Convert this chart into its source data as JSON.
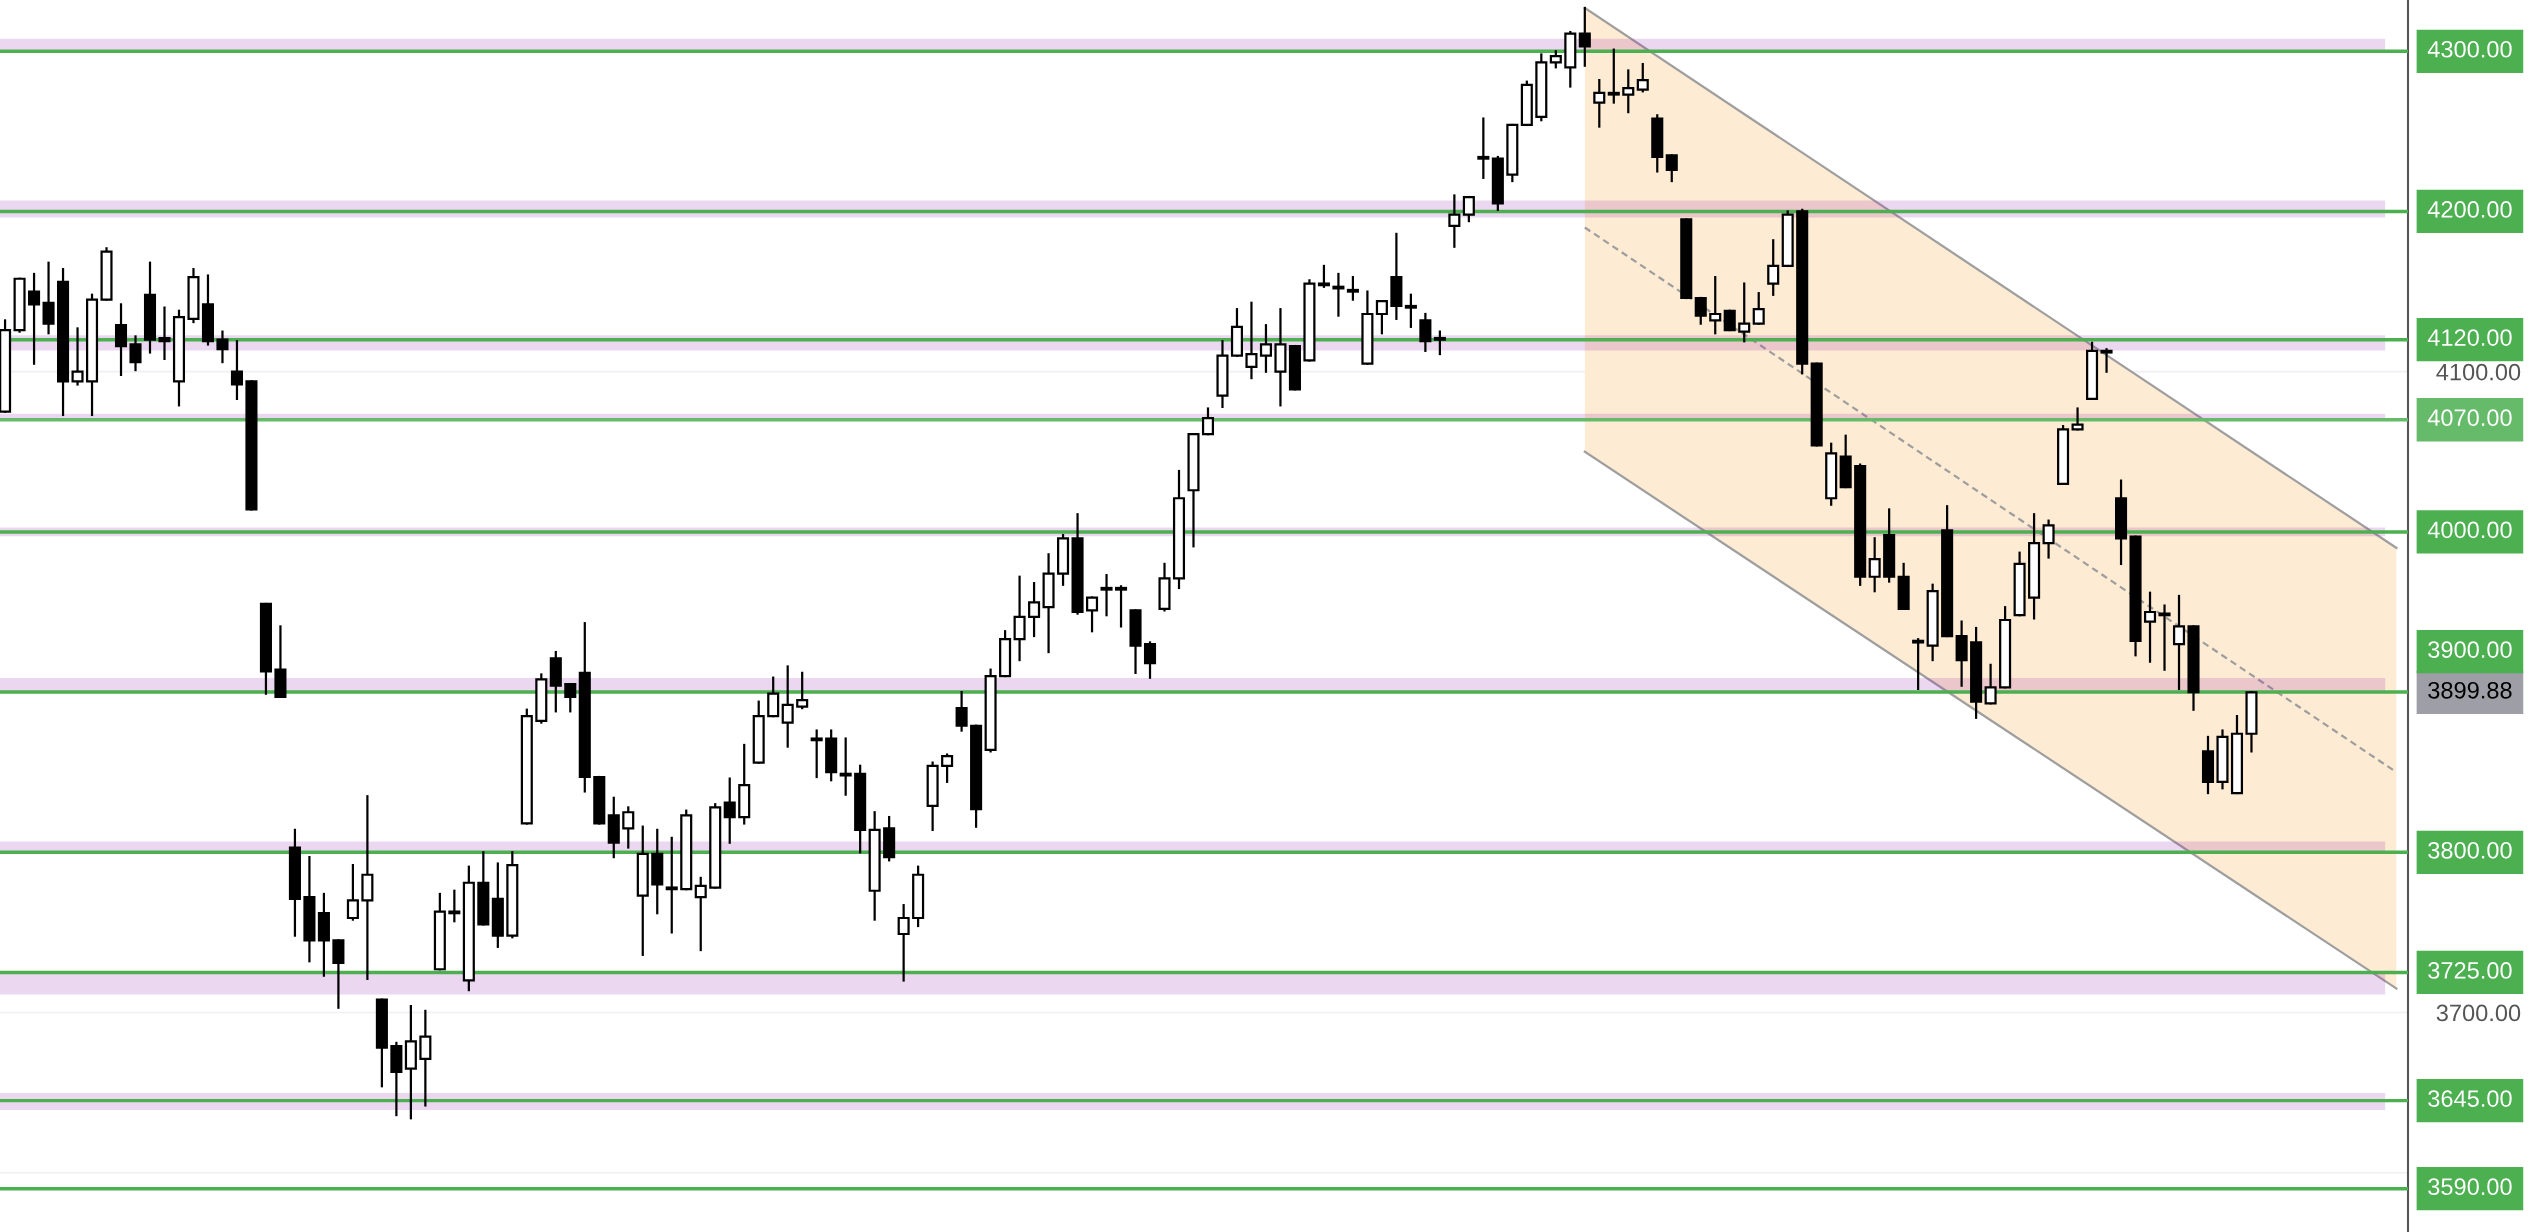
{
  "chart_data": {
    "type": "candlestick",
    "categories": [
      null,
      null,
      null,
      null,
      null,
      null,
      null,
      null,
      null,
      null,
      null,
      null,
      null,
      null,
      null,
      null,
      null,
      null,
      null,
      null,
      null,
      null,
      null,
      null,
      null,
      null,
      null,
      null,
      null,
      null,
      null,
      null,
      null,
      null,
      null,
      null,
      null,
      null,
      null,
      null,
      null,
      null,
      null,
      null,
      null,
      null,
      null,
      null,
      null,
      null,
      null,
      null,
      null,
      null,
      null,
      null,
      null,
      null,
      null,
      null,
      null,
      null,
      null,
      null,
      null,
      null,
      null,
      null,
      null,
      null,
      null,
      null,
      null,
      null,
      null,
      null,
      null,
      null,
      null,
      null,
      null,
      null,
      null,
      null,
      null,
      null,
      null,
      null,
      null,
      null,
      null,
      null,
      null,
      null,
      null,
      null,
      null,
      null,
      null,
      null,
      null,
      null,
      null,
      null,
      null,
      null,
      null,
      null,
      null,
      null,
      null,
      null,
      null,
      null,
      null,
      null,
      null,
      null,
      null,
      null,
      null,
      null,
      null,
      null,
      null,
      null,
      null,
      null,
      null,
      null,
      null,
      null,
      null,
      null,
      null,
      null,
      null,
      null,
      null,
      null,
      null,
      null,
      null,
      null,
      null,
      null,
      null,
      null,
      null,
      null,
      null,
      null,
      null,
      null,
      null,
      null,
      null,
      null,
      null,
      null,
      null,
      null,
      null,
      null,
      null,
      null
    ],
    "ohlc": [
      [
        4075,
        4132,
        4075,
        4126
      ],
      [
        4126,
        4158,
        4125,
        4158
      ],
      [
        4150,
        4161,
        4105,
        4142
      ],
      [
        4143,
        4168,
        4124,
        4130
      ],
      [
        4156,
        4164,
        4073,
        4094
      ],
      [
        4094,
        4127,
        4092,
        4100
      ],
      [
        4094,
        4148,
        4073,
        4145
      ],
      [
        4145,
        4177,
        4145,
        4175
      ],
      [
        4129,
        4142,
        4098,
        4116
      ],
      [
        4117,
        4122,
        4101,
        4106
      ],
      [
        4148,
        4168,
        4112,
        4120
      ],
      [
        4121,
        4140,
        4108,
        4119
      ],
      [
        4094,
        4138,
        4079,
        4134
      ],
      [
        4133,
        4164,
        4131,
        4159
      ],
      [
        4142,
        4160,
        4117,
        4119
      ],
      [
        4120,
        4125,
        4106,
        4114
      ],
      [
        4100,
        4119,
        4083,
        4092
      ],
      [
        4094,
        4094,
        4014,
        4014
      ],
      [
        3955,
        3955,
        3899,
        3913
      ],
      [
        3914,
        3941,
        3897,
        3897
      ],
      [
        3803,
        3814,
        3748,
        3771
      ],
      [
        3772,
        3797,
        3732,
        3745
      ],
      [
        3762,
        3774,
        3723,
        3745
      ],
      [
        3745,
        3745,
        3703,
        3731
      ],
      [
        3759,
        3792,
        3758,
        3770
      ],
      [
        3770,
        3835,
        3721,
        3786
      ],
      [
        3708,
        3708,
        3654,
        3678
      ],
      [
        3679,
        3681,
        3636,
        3663
      ],
      [
        3665,
        3704,
        3634,
        3682
      ],
      [
        3671,
        3701,
        3642,
        3685
      ],
      [
        3727,
        3774,
        3727,
        3763
      ],
      [
        3762,
        3776,
        3757,
        3763
      ],
      [
        3720,
        3791,
        3714,
        3781
      ],
      [
        3781,
        3800,
        3755,
        3755
      ],
      [
        3771,
        3793,
        3741,
        3748
      ],
      [
        3748,
        3800,
        3747,
        3792
      ],
      [
        3818,
        3889,
        3818,
        3885
      ],
      [
        3882,
        3911,
        3881,
        3908
      ],
      [
        3921,
        3925,
        3888,
        3904
      ],
      [
        3905,
        3905,
        3888,
        3897
      ],
      [
        3912,
        3943,
        3838,
        3847
      ],
      [
        3847,
        3847,
        3818,
        3818
      ],
      [
        3823,
        3834,
        3797,
        3806
      ],
      [
        3815,
        3828,
        3803,
        3825
      ],
      [
        3773,
        3816,
        3736,
        3799
      ],
      [
        3799,
        3814,
        3762,
        3780
      ],
      [
        3778,
        3809,
        3750,
        3777
      ],
      [
        3777,
        3826,
        3777,
        3823
      ],
      [
        3772,
        3784,
        3739,
        3779
      ],
      [
        3778,
        3830,
        3778,
        3828
      ],
      [
        3831,
        3846,
        3806,
        3822
      ],
      [
        3822,
        3867,
        3818,
        3842
      ],
      [
        3856,
        3894,
        3856,
        3885
      ],
      [
        3885,
        3909,
        3885,
        3899
      ],
      [
        3881,
        3916,
        3866,
        3892
      ],
      [
        3891,
        3912,
        3890,
        3895
      ],
      [
        3871,
        3876,
        3847,
        3870
      ],
      [
        3871,
        3876,
        3845,
        3850
      ],
      [
        3849,
        3871,
        3836,
        3848
      ],
      [
        3849,
        3854,
        3800,
        3814
      ],
      [
        3776,
        3825,
        3758,
        3814
      ],
      [
        3815,
        3822,
        3795,
        3797
      ],
      [
        3749,
        3767,
        3720,
        3759
      ],
      [
        3759,
        3791,
        3754,
        3786
      ],
      [
        3829,
        3856,
        3814,
        3854
      ],
      [
        3854,
        3861,
        3844,
        3860
      ],
      [
        3890,
        3900,
        3876,
        3879
      ],
      [
        3879,
        3879,
        3816,
        3827
      ],
      [
        3864,
        3914,
        3863,
        3910
      ],
      [
        3910,
        3938,
        3910,
        3933
      ],
      [
        3933,
        3972,
        3920,
        3947
      ],
      [
        3947,
        3968,
        3935,
        3956
      ],
      [
        3953,
        3986,
        3925,
        3974
      ],
      [
        3974,
        3998,
        3967,
        3996
      ],
      [
        3996,
        4011,
        3949,
        3950
      ],
      [
        3951,
        3959,
        3938,
        3959
      ],
      [
        3965,
        3973,
        3948,
        3964
      ],
      [
        3965,
        3966,
        3941,
        3964
      ],
      [
        3951,
        3951,
        3912,
        3929
      ],
      [
        3930,
        3931,
        3909,
        3918
      ],
      [
        3952,
        3980,
        3951,
        3971
      ],
      [
        3971,
        4038,
        3965,
        4021
      ],
      [
        4026,
        4061,
        3991,
        4061
      ],
      [
        4061,
        4077,
        4061,
        4071
      ],
      [
        4085,
        4119,
        4078,
        4110
      ],
      [
        4110,
        4139,
        4110,
        4128
      ],
      [
        4103,
        4143,
        4096,
        4111
      ],
      [
        4110,
        4129,
        4100,
        4117
      ],
      [
        4100,
        4139,
        4079,
        4117
      ],
      [
        4116,
        4116,
        4089,
        4089
      ],
      [
        4107,
        4157,
        4107,
        4155
      ],
      [
        4155,
        4166,
        4153,
        4154
      ],
      [
        4153,
        4161,
        4135,
        4152
      ],
      [
        4151,
        4159,
        4145,
        4150
      ],
      [
        4105,
        4150,
        4105,
        4136
      ],
      [
        4136,
        4144,
        4124,
        4144
      ],
      [
        4159,
        4186,
        4133,
        4141
      ],
      [
        4141,
        4148,
        4128,
        4140
      ],
      [
        4132,
        4136,
        4113,
        4119
      ],
      [
        4121,
        4125,
        4111,
        4120
      ],
      [
        4191,
        4210,
        4178,
        4198
      ],
      [
        4198,
        4209,
        4194,
        4209
      ],
      [
        4234,
        4258,
        4221,
        4233
      ],
      [
        4233,
        4234,
        4201,
        4205
      ],
      [
        4223,
        4254,
        4219,
        4254
      ],
      [
        4254,
        4281,
        4254,
        4279
      ],
      [
        4259,
        4298,
        4257,
        4293
      ],
      [
        4293,
        4300,
        4290,
        4297
      ],
      [
        4290,
        4312,
        4278,
        4311
      ],
      [
        4311,
        4327,
        4291,
        4303
      ],
      [
        4268,
        4282,
        4253,
        4274
      ],
      [
        4274,
        4301,
        4268,
        4273
      ],
      [
        4273,
        4288,
        4262,
        4277
      ],
      [
        4276,
        4292,
        4275,
        4282
      ],
      [
        4258,
        4260,
        4225,
        4234
      ],
      [
        4235,
        4235,
        4219,
        4226
      ],
      [
        4195,
        4195,
        4146,
        4146
      ],
      [
        4146,
        4146,
        4130,
        4135
      ],
      [
        4132,
        4159,
        4124,
        4136
      ],
      [
        4138,
        4138,
        4126,
        4126
      ],
      [
        4125,
        4155,
        4119,
        4130
      ],
      [
        4130,
        4149,
        4130,
        4139
      ],
      [
        4155,
        4182,
        4148,
        4166
      ],
      [
        4166,
        4200,
        4166,
        4198
      ],
      [
        4200,
        4201,
        4099,
        4105
      ],
      [
        4105,
        4105,
        4054,
        4054
      ],
      [
        4021,
        4055,
        4017,
        4049
      ],
      [
        4047,
        4060,
        4028,
        4028
      ],
      [
        4041,
        4042,
        3967,
        3972
      ],
      [
        3972,
        3996,
        3963,
        3983
      ],
      [
        3998,
        4014,
        3969,
        3972
      ],
      [
        3972,
        3980,
        3952,
        3952
      ],
      [
        3932,
        3933,
        3902,
        3931
      ],
      [
        3929,
        3967,
        3920,
        3963
      ],
      [
        4001,
        4016,
        3935,
        3935
      ],
      [
        3935,
        3944,
        3904,
        3920
      ],
      [
        3931,
        3940,
        3884,
        3894
      ],
      [
        3893,
        3917,
        3893,
        3903
      ],
      [
        3903,
        3953,
        3903,
        3945
      ],
      [
        3948,
        3987,
        3948,
        3980
      ],
      [
        3959,
        4011,
        3946,
        3993
      ],
      [
        3993,
        4007,
        3984,
        4004
      ],
      [
        4030,
        4066,
        4030,
        4064
      ],
      [
        4064,
        4077,
        4064,
        4067
      ],
      [
        4083,
        4118,
        4083,
        4113
      ],
      [
        4113,
        4114,
        4100,
        4112
      ],
      [
        4021,
        4032,
        3980,
        3996
      ],
      [
        3997,
        3997,
        3923,
        3932
      ],
      [
        3944,
        3962,
        3919,
        3950
      ],
      [
        3949,
        3954,
        3914,
        3948
      ],
      [
        3930,
        3960,
        3902,
        3941
      ],
      [
        3941,
        3941,
        3889,
        3900
      ],
      [
        3863,
        3872,
        3837,
        3844
      ],
      [
        3844,
        3876,
        3840,
        3872
      ],
      [
        3837,
        3885,
        3837,
        3874
      ],
      [
        3874,
        3900,
        3863,
        3899.88
      ],
      null,
      null,
      null,
      null,
      null,
      null,
      null,
      null,
      null,
      null
    ],
    "series": [
      {
        "type": "line",
        "color": "#9e9e9e",
        "line_style": "solid",
        "values": [
          null,
          null,
          null,
          null,
          null,
          null,
          null,
          null,
          null,
          null,
          null,
          null,
          null,
          null,
          null,
          null,
          null,
          null,
          null,
          null,
          null,
          null,
          null,
          null,
          null,
          null,
          null,
          null,
          null,
          null,
          null,
          null,
          null,
          null,
          null,
          null,
          null,
          null,
          null,
          null,
          null,
          null,
          null,
          null,
          null,
          null,
          null,
          null,
          null,
          null,
          null,
          null,
          null,
          null,
          null,
          null,
          null,
          null,
          null,
          null,
          null,
          null,
          null,
          null,
          null,
          null,
          null,
          null,
          null,
          null,
          null,
          null,
          null,
          null,
          null,
          null,
          null,
          null,
          null,
          null,
          null,
          null,
          null,
          null,
          null,
          null,
          null,
          null,
          null,
          null,
          null,
          null,
          null,
          null,
          null,
          null,
          null,
          null,
          null,
          null,
          null,
          null,
          null,
          null,
          null,
          null,
          null,
          null,
          null,
          4327,
          null,
          null,
          null,
          null,
          null,
          null,
          null,
          null,
          null,
          null,
          null,
          null,
          null,
          null,
          null,
          null,
          null,
          null,
          null,
          null,
          null,
          null,
          null,
          null,
          null,
          null,
          null,
          null,
          null,
          null,
          null,
          null,
          null,
          null,
          null,
          null,
          null,
          null,
          null,
          null,
          null,
          null,
          null,
          null,
          null,
          null,
          null,
          null,
          null,
          null,
          null,
          null,
          null,
          null,
          null,
          3990
        ]
      },
      {
        "type": "line",
        "color": "#9e9e9e",
        "line_style": "solid",
        "values": [
          null,
          null,
          null,
          null,
          null,
          null,
          null,
          null,
          null,
          null,
          null,
          null,
          null,
          null,
          null,
          null,
          null,
          null,
          null,
          null,
          null,
          null,
          null,
          null,
          null,
          null,
          null,
          null,
          null,
          null,
          null,
          null,
          null,
          null,
          null,
          null,
          null,
          null,
          null,
          null,
          null,
          null,
          null,
          null,
          null,
          null,
          null,
          null,
          null,
          null,
          null,
          null,
          null,
          null,
          null,
          null,
          null,
          null,
          null,
          null,
          null,
          null,
          null,
          null,
          null,
          null,
          null,
          null,
          null,
          null,
          null,
          null,
          null,
          null,
          null,
          null,
          null,
          null,
          null,
          null,
          null,
          null,
          null,
          null,
          null,
          null,
          null,
          null,
          null,
          null,
          null,
          null,
          null,
          null,
          null,
          null,
          null,
          null,
          null,
          null,
          null,
          null,
          null,
          null,
          null,
          null,
          null,
          null,
          null,
          4050,
          null,
          null,
          null,
          null,
          null,
          null,
          null,
          null,
          null,
          null,
          null,
          null,
          null,
          null,
          null,
          null,
          null,
          null,
          null,
          null,
          null,
          null,
          null,
          null,
          null,
          null,
          null,
          null,
          null,
          null,
          null,
          null,
          null,
          null,
          null,
          null,
          null,
          null,
          null,
          null,
          null,
          null,
          null,
          null,
          null,
          null,
          null,
          null,
          null,
          null,
          null,
          null,
          null,
          null,
          null,
          3715
        ]
      },
      {
        "type": "line",
        "color": "#9e9e9e",
        "line_style": "dashed",
        "values": [
          null,
          null,
          null,
          null,
          null,
          null,
          null,
          null,
          null,
          null,
          null,
          null,
          null,
          null,
          null,
          null,
          null,
          null,
          null,
          null,
          null,
          null,
          null,
          null,
          null,
          null,
          null,
          null,
          null,
          null,
          null,
          null,
          null,
          null,
          null,
          null,
          null,
          null,
          null,
          null,
          null,
          null,
          null,
          null,
          null,
          null,
          null,
          null,
          null,
          null,
          null,
          null,
          null,
          null,
          null,
          null,
          null,
          null,
          null,
          null,
          null,
          null,
          null,
          null,
          null,
          null,
          null,
          null,
          null,
          null,
          null,
          null,
          null,
          null,
          null,
          null,
          null,
          null,
          null,
          null,
          null,
          null,
          null,
          null,
          null,
          null,
          null,
          null,
          null,
          null,
          null,
          null,
          null,
          null,
          null,
          null,
          null,
          null,
          null,
          null,
          null,
          null,
          null,
          null,
          null,
          null,
          null,
          null,
          null,
          4190,
          null,
          null,
          null,
          null,
          null,
          null,
          null,
          null,
          null,
          null,
          null,
          null,
          null,
          null,
          null,
          null,
          null,
          null,
          null,
          null,
          null,
          null,
          null,
          null,
          null,
          null,
          null,
          null,
          null,
          null,
          null,
          null,
          null,
          null,
          null,
          null,
          null,
          null,
          null,
          null,
          null,
          null,
          null,
          null,
          null,
          null,
          null,
          null,
          null,
          null,
          null,
          null,
          null,
          null,
          null,
          3850
        ],
        "lower": [
          null,
          null,
          null,
          null,
          null,
          null,
          null,
          null,
          null,
          null,
          null,
          null,
          null,
          null,
          null,
          null,
          null,
          null,
          null,
          null,
          null,
          null,
          null,
          null,
          null,
          null,
          null,
          null,
          null,
          null,
          null,
          null,
          null,
          null,
          null,
          null,
          null,
          null,
          null,
          null,
          null,
          null,
          null,
          null,
          null,
          null,
          null,
          null,
          null,
          null,
          null,
          null,
          null,
          null,
          null,
          null,
          null,
          null,
          null,
          null,
          null,
          null,
          null,
          null,
          null,
          null,
          null,
          null,
          null,
          null,
          null,
          null,
          null,
          null,
          null,
          null,
          null,
          null,
          null,
          null,
          null,
          null,
          null,
          null,
          null,
          null,
          null,
          null,
          null,
          null,
          null,
          null,
          null,
          null,
          null,
          null,
          null,
          null,
          null,
          null,
          null,
          null,
          null,
          null,
          null,
          null,
          null,
          null,
          null,
          4050,
          null,
          null,
          null,
          null,
          null,
          null,
          null,
          null,
          null,
          null,
          null,
          null,
          null,
          null,
          null,
          null,
          null,
          null,
          null,
          null,
          null,
          null,
          null,
          null,
          null,
          null,
          null,
          null,
          null,
          null,
          null,
          null,
          null,
          null,
          null,
          null,
          null,
          null,
          null,
          null,
          null,
          null,
          null,
          null,
          null,
          null,
          null,
          null,
          null,
          null,
          null,
          null,
          null,
          null,
          null,
          3715
        ],
        "upper": [
          null,
          null,
          null,
          null,
          null,
          null,
          null,
          null,
          null,
          null,
          null,
          null,
          null,
          null,
          null,
          null,
          null,
          null,
          null,
          null,
          null,
          null,
          null,
          null,
          null,
          null,
          null,
          null,
          null,
          null,
          null,
          null,
          null,
          null,
          null,
          null,
          null,
          null,
          null,
          null,
          null,
          null,
          null,
          null,
          null,
          null,
          null,
          null,
          null,
          null,
          null,
          null,
          null,
          null,
          null,
          null,
          null,
          null,
          null,
          null,
          null,
          null,
          null,
          null,
          null,
          null,
          null,
          null,
          null,
          null,
          null,
          null,
          null,
          null,
          null,
          null,
          null,
          null,
          null,
          null,
          null,
          null,
          null,
          null,
          null,
          null,
          null,
          null,
          null,
          null,
          null,
          null,
          null,
          null,
          null,
          null,
          null,
          null,
          null,
          null,
          null,
          null,
          null,
          null,
          null,
          null,
          null,
          null,
          null,
          4327,
          null,
          null,
          null,
          null,
          null,
          null,
          null,
          null,
          null,
          null,
          null,
          null,
          null,
          null,
          null,
          null,
          null,
          null,
          null,
          null,
          null,
          null,
          null,
          null,
          null,
          null,
          null,
          null,
          null,
          null,
          null,
          null,
          null,
          null,
          null,
          null,
          null,
          null,
          null,
          null,
          null,
          null,
          null,
          null,
          null,
          null,
          null,
          null,
          null,
          null,
          null,
          null,
          null,
          null,
          null,
          3990
        ]
      }
    ],
    "annotations": [
      "3899.88"
    ],
    "ylim": [
      3563,
      4332
    ],
    "yticks": [
      {
        "value": 3600,
        "label": null
      },
      {
        "value": 3700,
        "label": "3700.00"
      },
      {
        "value": 3800,
        "label": null
      },
      {
        "value": 3900,
        "label": null
      },
      {
        "value": 4000,
        "label": null
      },
      {
        "value": 4100,
        "label": "4100.00"
      },
      {
        "value": 4200,
        "label": null
      },
      {
        "value": 4300,
        "label": null
      }
    ],
    "grid": "y",
    "tick_labels": "y",
    "ref_lines": [
      {
        "axis": "y",
        "value": 4300,
        "label": "4300.00",
        "color": "#4caf50"
      },
      {
        "axis": "y",
        "value": 4200,
        "label": "4200.00",
        "color": "#4caf50"
      },
      {
        "axis": "y",
        "value": 4120,
        "label": "4120.00",
        "color": "#4caf50"
      },
      {
        "axis": "y",
        "value": 4070,
        "label": "4070.00",
        "color": "#66bb6a"
      },
      {
        "axis": "y",
        "value": 4000,
        "label": "4000.00",
        "color": "#4caf50"
      },
      {
        "axis": "y",
        "value": 3900,
        "label": "3900.00",
        "color": "#4caf50"
      },
      {
        "axis": "y",
        "value": 3800,
        "label": "3800.00",
        "color": "#4caf50"
      },
      {
        "axis": "y",
        "value": 3725,
        "label": "3725.00",
        "color": "#4caf50"
      },
      {
        "axis": "y",
        "value": 3645,
        "label": "3645.00",
        "color": "#4caf50"
      },
      {
        "axis": "y",
        "value": 3590,
        "label": "3590.00",
        "color": "#4caf50"
      }
    ],
    "bands": [
      {
        "axis": "y",
        "from": 4300,
        "to": 4307,
        "color": "#9c27b0"
      },
      {
        "axis": "y",
        "from": 4197,
        "to": 4206,
        "color": "#9c27b0"
      },
      {
        "axis": "y",
        "from": 4114,
        "to": 4122,
        "color": "#9c27b0"
      },
      {
        "axis": "y",
        "from": 4070,
        "to": 4073,
        "color": "#9c27b0"
      },
      {
        "axis": "y",
        "from": 3998,
        "to": 4002,
        "color": "#9c27b0"
      },
      {
        "axis": "y",
        "from": 3900,
        "to": 3908,
        "color": "#9c27b0"
      },
      {
        "axis": "y",
        "from": 3800,
        "to": 3806,
        "color": "#9c27b0"
      },
      {
        "axis": "y",
        "from": 3712,
        "to": 3725,
        "color": "#9c27b0"
      },
      {
        "axis": "y",
        "from": 3640,
        "to": 3649,
        "color": "#9c27b0"
      }
    ]
  }
}
